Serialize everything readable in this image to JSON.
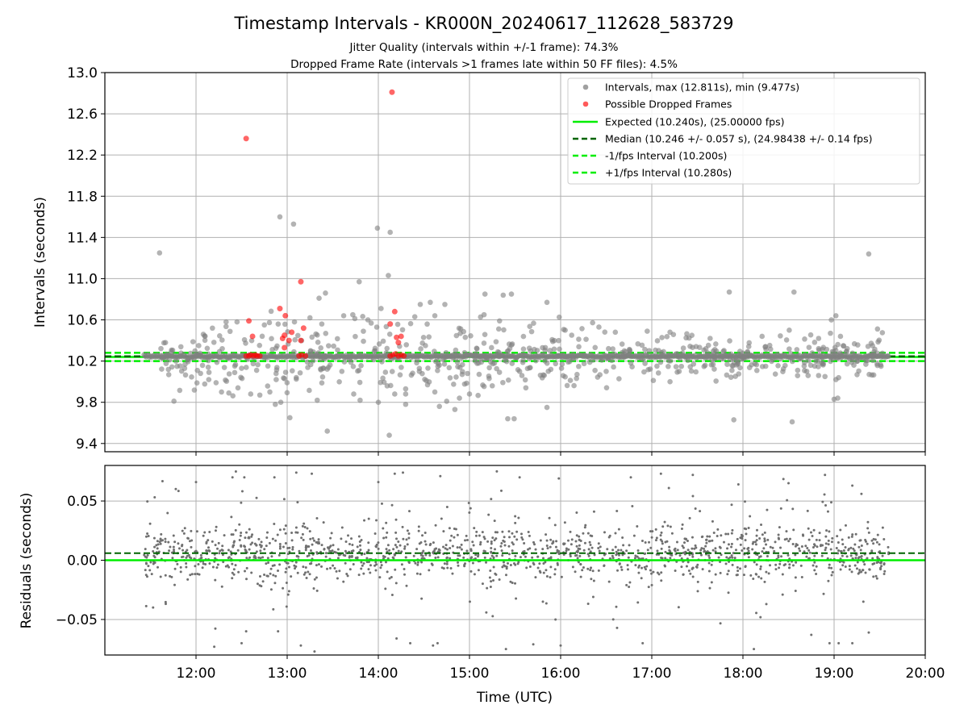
{
  "chart_data": [
    {
      "type": "scatter",
      "title": "Timestamp Intervals - KR000N_20240617_112628_583729",
      "subtitle_lines": [
        "Jitter Quality (intervals within +/-1 frame): 74.3%",
        "Dropped Frame Rate (intervals >1 frames late within 50 FF files): 4.5%"
      ],
      "xlabel": "",
      "ylabel": "Intervals (seconds)",
      "xlim": [
        11.0,
        20.0
      ],
      "ylim": [
        9.32,
        13.0
      ],
      "yticks": [
        9.4,
        9.8,
        10.2,
        10.6,
        11.0,
        11.4,
        11.8,
        12.2,
        12.6,
        13.0
      ],
      "ytick_labels": [
        "9.4",
        "9.8",
        "10.2",
        "10.6",
        "11.0",
        "11.4",
        "11.8",
        "12.2",
        "12.6",
        "13.0"
      ],
      "grid": true,
      "legend_position": "top-right",
      "colors": {
        "intervals": "#808080",
        "dropped": "#ff0000",
        "expected": "#00ee00",
        "median": "#006400",
        "fps_interval": "#00ee00"
      },
      "legend": [
        {
          "label": "Intervals, max (12.811s), min (9.477s)",
          "style": "marker",
          "color": "#a0a0a0"
        },
        {
          "label": "Possible Dropped Frames",
          "style": "marker",
          "color": "#ff5a5a"
        },
        {
          "label": "Expected (10.240s), (25.00000 fps)",
          "style": "solid",
          "color": "#00ee00"
        },
        {
          "label": "Median (10.246 +/- 0.057 s), (24.98438 +/- 0.14 fps)",
          "style": "dashed",
          "color": "#006400"
        },
        {
          "label": "-1/fps Interval (10.200s)",
          "style": "dashed",
          "color": "#00ee00"
        },
        {
          "label": "+1/fps Interval (10.280s)",
          "style": "dashed",
          "color": "#00ee00"
        }
      ],
      "reference_lines": {
        "expected": 10.24,
        "median": 10.246,
        "minus_fps": 10.2,
        "plus_fps": 10.28
      },
      "series": [
        {
          "role": "intervals",
          "points": [
            [
              11.6,
              11.25
            ],
            [
              12.92,
              11.6
            ],
            [
              13.07,
              11.53
            ],
            [
              13.99,
              11.49
            ],
            [
              14.13,
              11.45
            ],
            [
              14.11,
              11.03
            ],
            [
              13.79,
              10.97
            ],
            [
              14.03,
              10.71
            ],
            [
              13.42,
              10.86
            ],
            [
              13.35,
              10.81
            ],
            [
              15.17,
              10.85
            ],
            [
              15.37,
              10.84
            ],
            [
              15.46,
              10.85
            ],
            [
              15.85,
              10.77
            ],
            [
              15.16,
              10.65
            ],
            [
              14.57,
              10.77
            ],
            [
              14.73,
              10.75
            ],
            [
              14.46,
              10.75
            ],
            [
              17.85,
              10.87
            ],
            [
              18.56,
              10.87
            ],
            [
              19.38,
              11.24
            ],
            [
              19.02,
              10.64
            ],
            [
              18.97,
              10.6
            ],
            [
              12.08,
              10.46
            ],
            [
              12.33,
              10.58
            ],
            [
              12.45,
              10.58
            ],
            [
              13.08,
              10.58
            ],
            [
              13.25,
              10.62
            ],
            [
              13.38,
              10.56
            ],
            [
              13.62,
              10.64
            ],
            [
              13.72,
              10.65
            ],
            [
              14.4,
              10.63
            ],
            [
              14.62,
              10.64
            ],
            [
              15.33,
              10.59
            ],
            [
              16.05,
              10.5
            ],
            [
              16.6,
              10.48
            ],
            [
              16.95,
              10.49
            ],
            [
              17.2,
              10.48
            ],
            [
              17.44,
              10.45
            ],
            [
              17.64,
              10.42
            ],
            [
              18.21,
              10.44
            ],
            [
              18.83,
              10.42
            ],
            [
              18.96,
              10.47
            ],
            [
              19.07,
              10.44
            ],
            [
              12.18,
              10.52
            ],
            [
              12.03,
              10.35
            ],
            [
              11.78,
              10.2
            ],
            [
              11.88,
              10.17
            ],
            [
              12.05,
              10.08
            ],
            [
              12.14,
              10.02
            ],
            [
              12.22,
              9.99
            ],
            [
              12.28,
              9.9
            ],
            [
              12.36,
              9.89
            ],
            [
              12.46,
              9.94
            ],
            [
              12.6,
              9.88
            ],
            [
              12.7,
              9.87
            ],
            [
              12.81,
              9.9
            ],
            [
              12.87,
              9.78
            ],
            [
              12.93,
              9.8
            ],
            [
              13.03,
              9.65
            ],
            [
              13.33,
              9.82
            ],
            [
              13.44,
              9.52
            ],
            [
              13.8,
              9.82
            ],
            [
              13.73,
              9.88
            ],
            [
              14.0,
              9.8
            ],
            [
              14.18,
              9.88
            ],
            [
              14.3,
              9.93
            ],
            [
              14.54,
              9.97
            ],
            [
              14.62,
              9.9
            ],
            [
              14.75,
              9.81
            ],
            [
              14.89,
              9.84
            ],
            [
              15.0,
              9.88
            ],
            [
              15.25,
              9.96
            ],
            [
              15.42,
              9.64
            ],
            [
              15.49,
              9.64
            ],
            [
              15.85,
              9.75
            ],
            [
              14.3,
              9.78
            ],
            [
              14.12,
              9.48
            ],
            [
              14.3,
              9.88
            ],
            [
              14.67,
              9.76
            ],
            [
              14.84,
              9.73
            ],
            [
              17.2,
              10.0
            ],
            [
              17.9,
              9.63
            ],
            [
              18.54,
              9.61
            ],
            [
              19.0,
              9.83
            ],
            [
              19.04,
              9.84
            ],
            [
              18.83,
              10.06
            ],
            [
              18.9,
              10.05
            ],
            [
              19.02,
              10.02
            ],
            [
              12.5,
              10.13
            ],
            [
              12.97,
              10.03
            ],
            [
              13.1,
              10.04
            ],
            [
              13.4,
              10.13
            ],
            [
              13.6,
              10.1
            ],
            [
              14.45,
              10.1
            ],
            [
              14.92,
              10.07
            ],
            [
              15.55,
              10.1
            ],
            [
              16.18,
              10.07
            ],
            [
              16.5,
              10.1
            ],
            [
              17.3,
              10.1
            ],
            [
              18.25,
              10.15
            ],
            [
              18.7,
              10.1
            ]
          ]
        },
        {
          "role": "dropped",
          "points": [
            [
              12.55,
              12.36
            ],
            [
              14.15,
              12.81
            ],
            [
              13.15,
              10.97
            ],
            [
              12.92,
              10.71
            ],
            [
              12.98,
              10.64
            ],
            [
              14.18,
              10.68
            ],
            [
              12.58,
              10.59
            ],
            [
              13.18,
              10.52
            ],
            [
              14.13,
              10.56
            ],
            [
              12.97,
              10.45
            ],
            [
              13.05,
              10.48
            ],
            [
              14.2,
              10.43
            ],
            [
              14.25,
              10.44
            ],
            [
              12.62,
              10.44
            ],
            [
              12.95,
              10.42
            ],
            [
              13.02,
              10.4
            ],
            [
              13.15,
              10.4
            ],
            [
              14.22,
              10.38
            ],
            [
              12.97,
              10.33
            ],
            [
              12.55,
              10.25
            ],
            [
              12.58,
              10.25
            ],
            [
              12.6,
              10.26
            ],
            [
              12.63,
              10.25
            ],
            [
              12.65,
              10.26
            ],
            [
              12.67,
              10.25
            ],
            [
              12.7,
              10.25
            ],
            [
              13.13,
              10.25
            ],
            [
              13.16,
              10.26
            ],
            [
              13.2,
              10.25
            ],
            [
              14.13,
              10.25
            ],
            [
              14.16,
              10.26
            ],
            [
              14.19,
              10.27
            ],
            [
              14.22,
              10.25
            ],
            [
              14.25,
              10.26
            ],
            [
              14.28,
              10.25
            ]
          ]
        }
      ]
    },
    {
      "type": "scatter",
      "xlabel": "Time (UTC)",
      "ylabel": "Residuals (seconds)",
      "xlim": [
        11.0,
        20.0
      ],
      "ylim": [
        -0.08,
        0.08
      ],
      "xticks": [
        12,
        13,
        14,
        15,
        16,
        17,
        18,
        19,
        20
      ],
      "xtick_labels": [
        "12:00",
        "13:00",
        "14:00",
        "15:00",
        "16:00",
        "17:00",
        "18:00",
        "19:00",
        "20:00"
      ],
      "yticks": [
        -0.05,
        0.0,
        0.05
      ],
      "ytick_labels": [
        "−0.05",
        "0.00",
        "0.05"
      ],
      "grid": true,
      "x_range_of_data": [
        11.43,
        19.6
      ],
      "reference_lines": {
        "expected": 0.0,
        "median": 0.006
      },
      "series": [
        {
          "role": "residuals",
          "color": "#707070",
          "points": [
            [
              12.2,
              -0.073
            ],
            [
              12.5,
              -0.07
            ],
            [
              12.55,
              -0.06
            ],
            [
              12.9,
              -0.06
            ],
            [
              13.15,
              -0.072
            ],
            [
              13.3,
              -0.077
            ],
            [
              14.2,
              -0.066
            ],
            [
              14.35,
              -0.07
            ],
            [
              14.6,
              -0.072
            ],
            [
              14.65,
              -0.07
            ],
            [
              15.4,
              -0.075
            ],
            [
              15.7,
              -0.071
            ],
            [
              16.0,
              -0.072
            ],
            [
              16.9,
              -0.07
            ],
            [
              18.12,
              -0.075
            ],
            [
              18.75,
              -0.063
            ],
            [
              18.95,
              -0.07
            ],
            [
              19.05,
              -0.07
            ],
            [
              19.2,
              -0.07
            ],
            [
              12.0,
              0.066
            ],
            [
              12.4,
              0.07
            ],
            [
              12.53,
              0.07
            ],
            [
              12.86,
              0.07
            ],
            [
              13.1,
              0.074
            ],
            [
              13.27,
              0.073
            ],
            [
              14.0,
              0.066
            ],
            [
              14.18,
              0.073
            ],
            [
              14.27,
              0.074
            ],
            [
              14.68,
              0.071
            ],
            [
              15.3,
              0.075
            ],
            [
              15.55,
              0.07
            ],
            [
              15.98,
              0.069
            ],
            [
              16.77,
              0.07
            ],
            [
              17.1,
              0.073
            ],
            [
              17.45,
              0.072
            ],
            [
              17.95,
              0.064
            ],
            [
              18.5,
              0.065
            ],
            [
              18.9,
              0.072
            ],
            [
              19.2,
              0.063
            ],
            [
              19.3,
              0.056
            ]
          ]
        }
      ]
    }
  ]
}
